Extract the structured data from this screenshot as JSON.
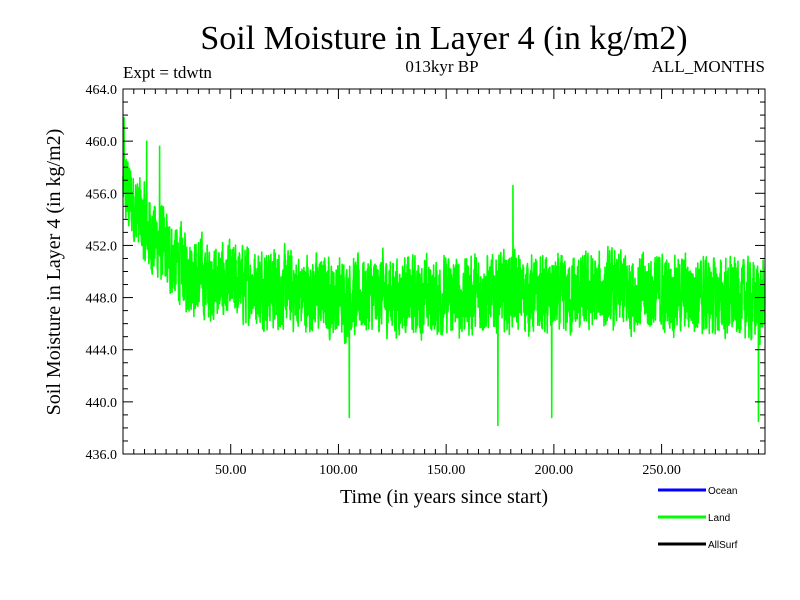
{
  "chart_data": {
    "type": "line",
    "title": "Soil Moisture in Layer 4 (in kg/m2)",
    "subtitle_left": "Expt = tdwtn",
    "subtitle_center": "013kyr BP",
    "subtitle_right": "ALL_MONTHS",
    "xlabel": "Time (in years since start)",
    "ylabel": "Soil Moisture in Layer 4 (in kg/m2)",
    "xlim": [
      0,
      298
    ],
    "ylim": [
      436,
      464
    ],
    "x_ticks": [
      50,
      100,
      150,
      200,
      250
    ],
    "x_tick_labels": [
      "50.00",
      "100.00",
      "150.00",
      "200.00",
      "250.00"
    ],
    "y_ticks": [
      436,
      440,
      444,
      448,
      452,
      456,
      460,
      464
    ],
    "y_tick_labels": [
      "436.0",
      "440.0",
      "444.0",
      "448.0",
      "452.0",
      "456.0",
      "460.0",
      "464.0"
    ],
    "legend": [
      {
        "label": "Ocean",
        "color": "#0000ff"
      },
      {
        "label": "Land",
        "color": "#00ff00"
      },
      {
        "label": "AllSurf",
        "color": "#000000"
      }
    ],
    "series": [
      {
        "name": "Land",
        "color": "#00ff00",
        "x_start": 0,
        "x_step": 0.0833,
        "trend_x": [
          0,
          5,
          10,
          15,
          20,
          30,
          40,
          60,
          80,
          100,
          120,
          150,
          180,
          200,
          230,
          260,
          280,
          298
        ],
        "trend_y": [
          456.5,
          455,
          453.5,
          452.5,
          451.5,
          450,
          449.2,
          449,
          448.5,
          448,
          448.3,
          448,
          448.5,
          448,
          448.5,
          448.3,
          448,
          447.8
        ],
        "noise_amplitude": 2.6,
        "spike_markers": [
          {
            "x": 0.5,
            "y": 461.8
          },
          {
            "x": 11,
            "y": 460
          },
          {
            "x": 17,
            "y": 459.6
          },
          {
            "x": 105,
            "y": 438.8
          },
          {
            "x": 174,
            "y": 438.2
          },
          {
            "x": 181,
            "y": 456.6
          },
          {
            "x": 199,
            "y": 438.8
          },
          {
            "x": 295,
            "y": 438.5
          }
        ]
      }
    ]
  }
}
